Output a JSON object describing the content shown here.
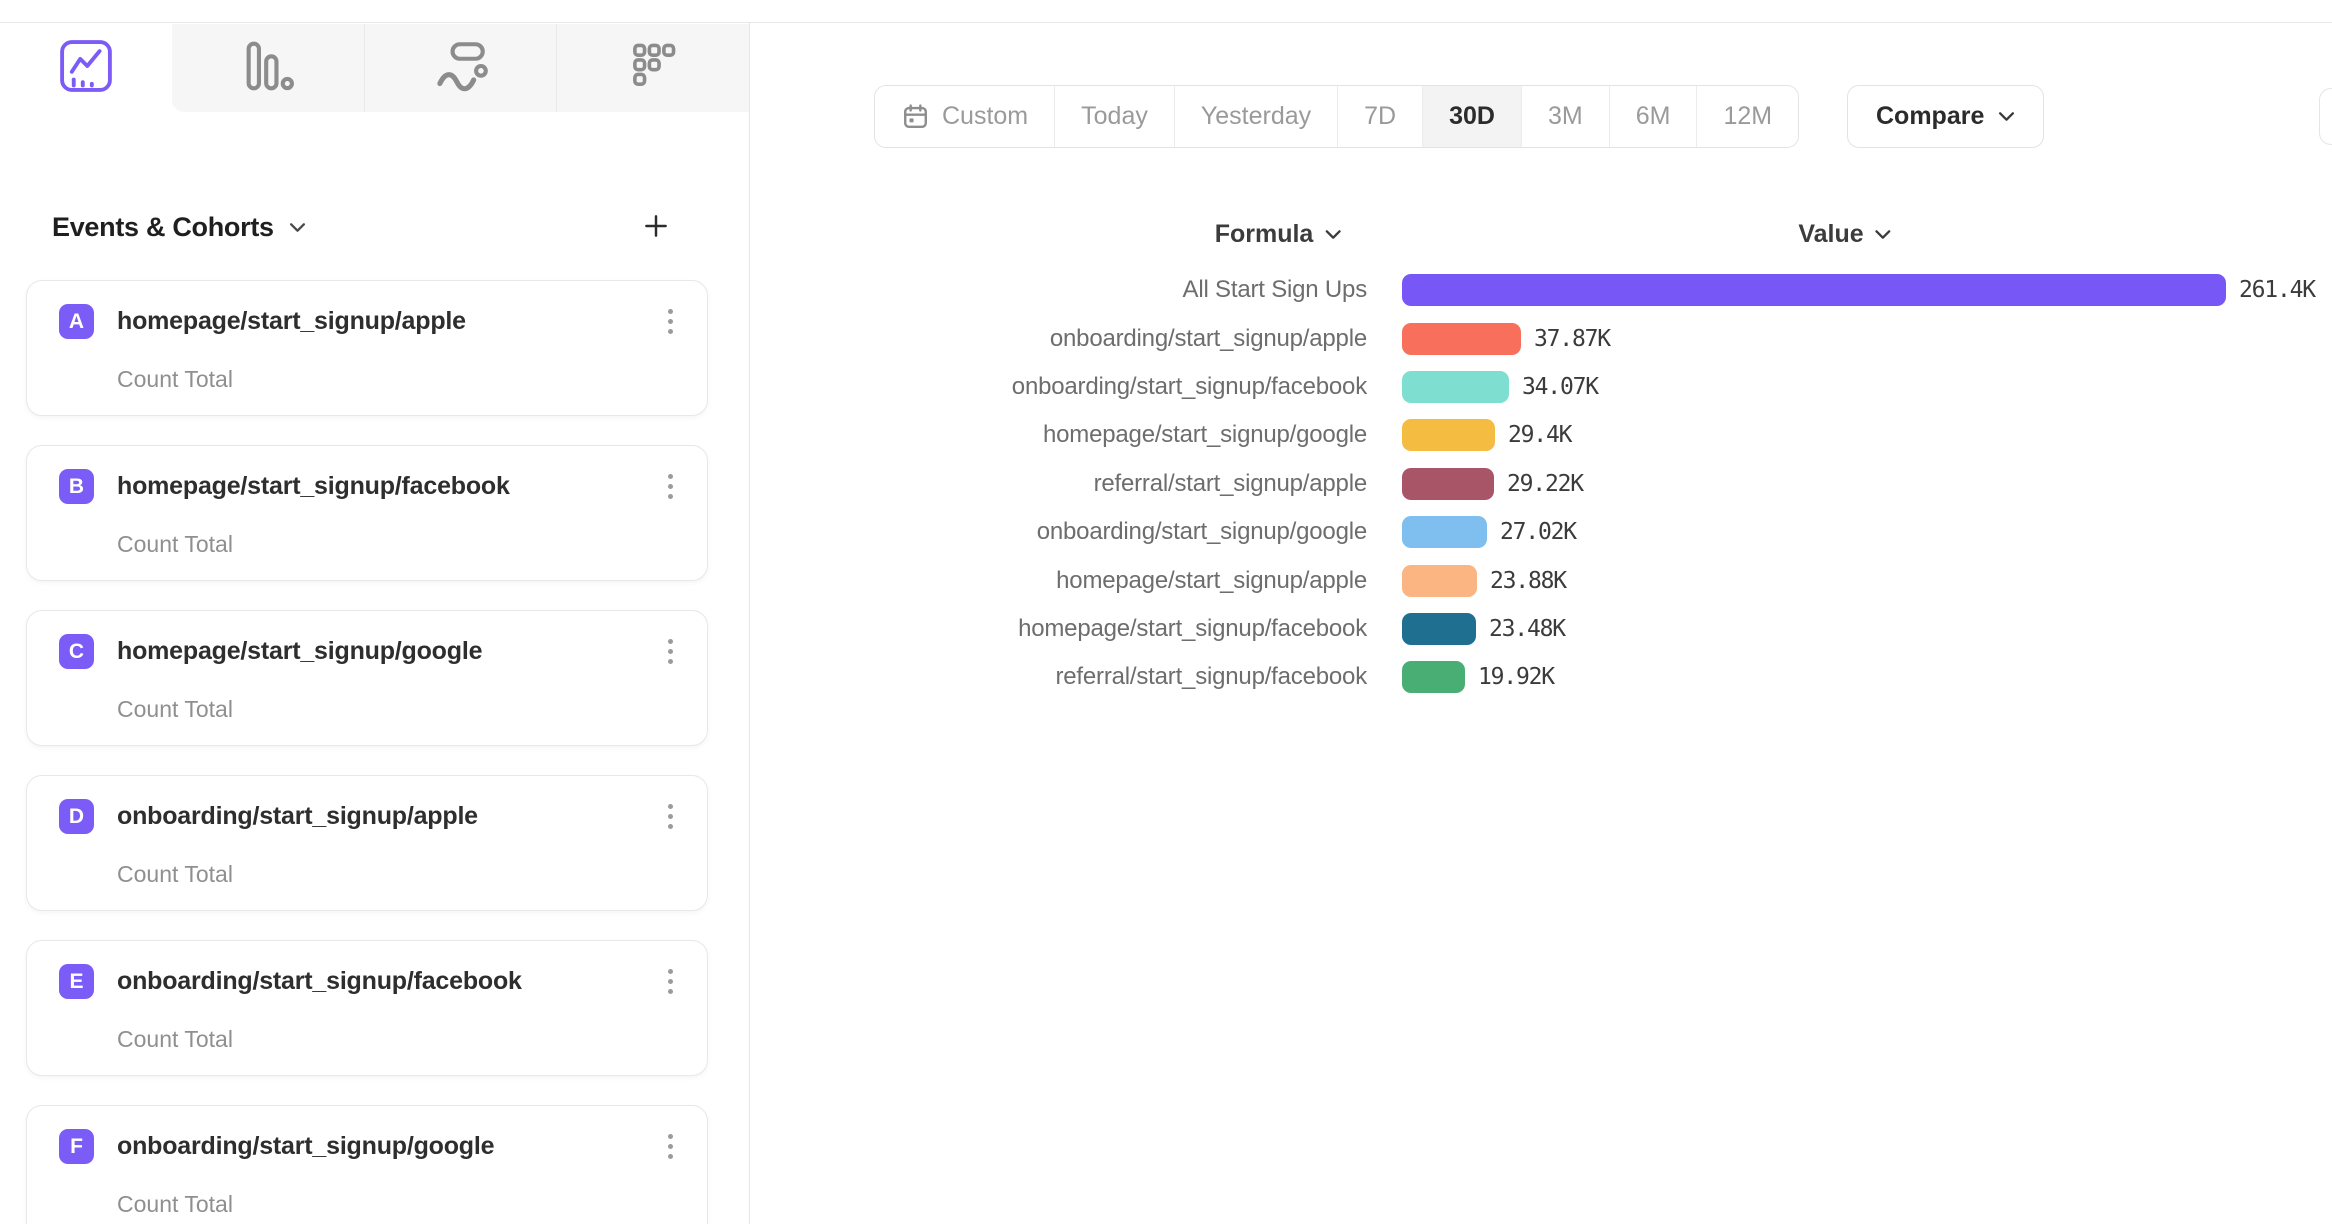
{
  "app": {
    "accent_color": "#7b5cf6"
  },
  "tabs": [
    {
      "id": "insights",
      "icon": "line-chart-icon",
      "active": true
    },
    {
      "id": "funnels",
      "icon": "bar-chart-icon",
      "active": false
    },
    {
      "id": "flows",
      "icon": "flows-icon",
      "active": false
    },
    {
      "id": "retention",
      "icon": "retention-grid-icon",
      "active": false
    }
  ],
  "sidebar": {
    "header": {
      "label": "Events & Cohorts",
      "chevron_icon": "chevron-down-icon",
      "add_icon": "plus-icon"
    },
    "badge_color": "#7b5cf6",
    "events": [
      {
        "letter": "A",
        "name": "homepage/start_signup/apple",
        "metric": "Count Total"
      },
      {
        "letter": "B",
        "name": "homepage/start_signup/facebook",
        "metric": "Count Total"
      },
      {
        "letter": "C",
        "name": "homepage/start_signup/google",
        "metric": "Count Total"
      },
      {
        "letter": "D",
        "name": "onboarding/start_signup/apple",
        "metric": "Count Total"
      },
      {
        "letter": "E",
        "name": "onboarding/start_signup/facebook",
        "metric": "Count Total"
      },
      {
        "letter": "F",
        "name": "onboarding/start_signup/google",
        "metric": "Count Total"
      }
    ]
  },
  "toolbar": {
    "date_ranges": [
      "Custom",
      "Today",
      "Yesterday",
      "7D",
      "30D",
      "3M",
      "6M",
      "12M"
    ],
    "selected_range": "30D",
    "custom_icon": "calendar-icon",
    "compare_label": "Compare"
  },
  "chart_data": {
    "type": "bar",
    "orientation": "horizontal",
    "legend_position": "none",
    "grid": false,
    "column_headers": {
      "formula": "Formula",
      "value": "Value"
    },
    "xlim": [
      0,
      261400
    ],
    "max_value": 261400,
    "rows": [
      {
        "label": "All Start Sign Ups",
        "value": 261400,
        "value_label": "261.4K",
        "color": "#7857f7"
      },
      {
        "label": "onboarding/start_signup/apple",
        "value": 37870,
        "value_label": "37.87K",
        "color": "#f8705c"
      },
      {
        "label": "onboarding/start_signup/facebook",
        "value": 34070,
        "value_label": "34.07K",
        "color": "#7edfd1"
      },
      {
        "label": "homepage/start_signup/google",
        "value": 29400,
        "value_label": "29.4K",
        "color": "#f4bd41"
      },
      {
        "label": "referral/start_signup/apple",
        "value": 29220,
        "value_label": "29.22K",
        "color": "#a85568"
      },
      {
        "label": "onboarding/start_signup/google",
        "value": 27020,
        "value_label": "27.02K",
        "color": "#7fbfef"
      },
      {
        "label": "homepage/start_signup/apple",
        "value": 23880,
        "value_label": "23.88K",
        "color": "#fab583"
      },
      {
        "label": "homepage/start_signup/facebook",
        "value": 23480,
        "value_label": "23.48K",
        "color": "#1f7090"
      },
      {
        "label": "referral/start_signup/facebook",
        "value": 19920,
        "value_label": "19.92K",
        "color": "#48ae73"
      }
    ]
  }
}
